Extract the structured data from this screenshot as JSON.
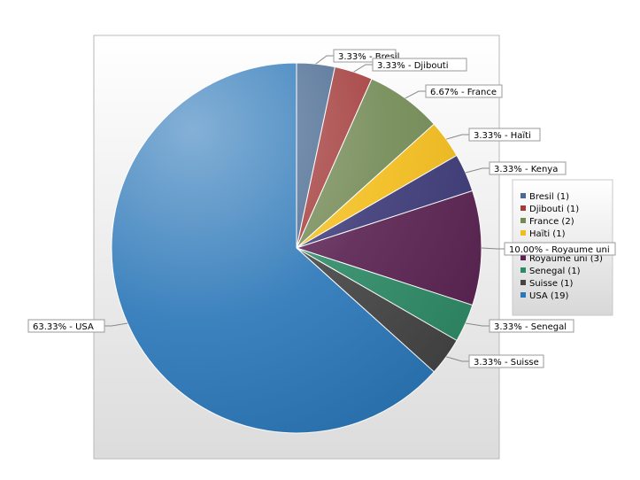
{
  "chart_data": {
    "type": "pie",
    "title": "",
    "legend_position": "right",
    "slices": [
      {
        "label": "Bresil",
        "count": 1,
        "percent": "3.33%",
        "callout": "3.33% - Bresil",
        "legend": "Bresil (1)",
        "color": "#4a6a92"
      },
      {
        "label": "Djibouti",
        "count": 1,
        "percent": "3.33%",
        "callout": "3.33% - Djibouti",
        "legend": "Djibouti (1)",
        "color": "#a33b3b"
      },
      {
        "label": "France",
        "count": 2,
        "percent": "6.67%",
        "callout": "6.67% - France",
        "legend": "France (2)",
        "color": "#738a55"
      },
      {
        "label": "Haïti",
        "count": 1,
        "percent": "3.33%",
        "callout": "3.33% - Haïti",
        "legend": "Haïti (1)",
        "color": "#f2bd1c"
      },
      {
        "label": "Kenya",
        "count": 1,
        "percent": "3.33%",
        "callout": "3.33% - Kenya",
        "legend": "Kenya (1)",
        "color": "#3d3a78"
      },
      {
        "label": "Royaume uni",
        "count": 3,
        "percent": "10.00%",
        "callout": "10.00% - Royaume uni",
        "legend": "Royaume uni (3)",
        "color": "#5a2352"
      },
      {
        "label": "Senegal",
        "count": 1,
        "percent": "3.33%",
        "callout": "3.33% - Senegal",
        "legend": "Senegal (1)",
        "color": "#2e8a66"
      },
      {
        "label": "Suisse",
        "count": 1,
        "percent": "3.33%",
        "callout": "3.33% - Suisse",
        "legend": "Suisse (1)",
        "color": "#444444"
      },
      {
        "label": "USA",
        "count": 19,
        "percent": "63.33%",
        "callout": "63.33% - USA",
        "legend": "USA (19)",
        "color": "#2b77b8"
      }
    ]
  }
}
